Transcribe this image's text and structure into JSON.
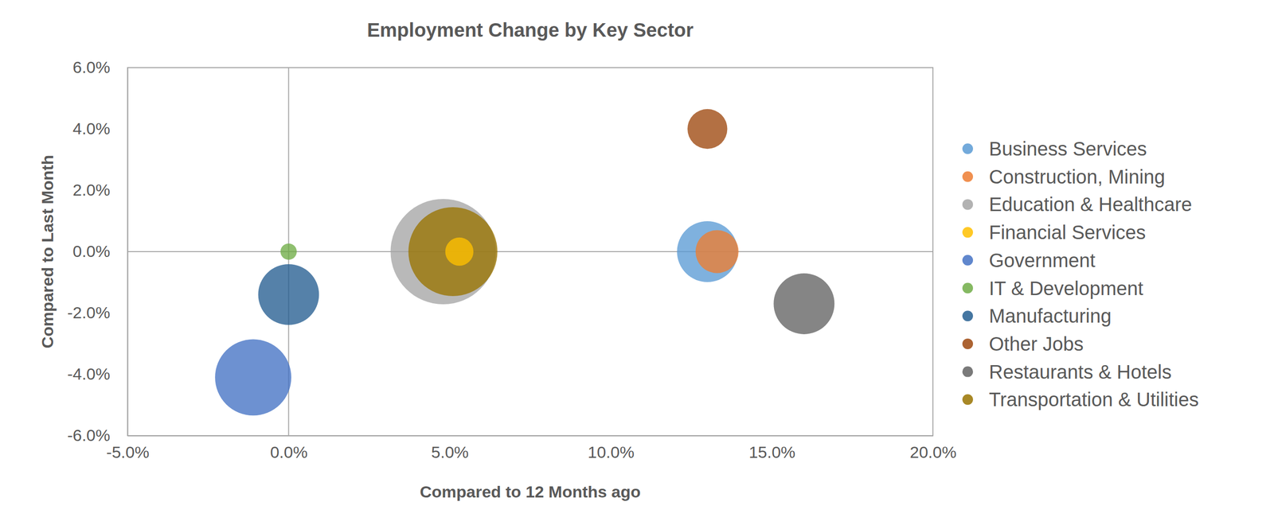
{
  "chart_data": {
    "type": "bubble",
    "title": "Employment Change by Key Sector",
    "x_label": "Compared to 12 Months ago",
    "y_label": "Compared to Last Month",
    "xlim": [
      -5,
      20
    ],
    "ylim": [
      -6,
      6
    ],
    "xticks": [
      {
        "value": -5,
        "label": "-5.0%"
      },
      {
        "value": 0,
        "label": "0.0%"
      },
      {
        "value": 5,
        "label": "5.0%"
      },
      {
        "value": 10,
        "label": "10.0%"
      },
      {
        "value": 15,
        "label": "15.0%"
      },
      {
        "value": 20,
        "label": "20.0%"
      }
    ],
    "yticks": [
      {
        "value": -6,
        "label": "-6.0%"
      },
      {
        "value": -4,
        "label": "-4.0%"
      },
      {
        "value": -2,
        "label": "-2.0%"
      },
      {
        "value": 0,
        "label": "0.0%"
      },
      {
        "value": 2,
        "label": "2.0%"
      },
      {
        "value": 4,
        "label": "4.0%"
      },
      {
        "value": 6,
        "label": "6.0%"
      }
    ],
    "grid": false,
    "legend": "right",
    "series": [
      {
        "name": "Business Services",
        "color": "#5b9bd5",
        "x": [
          13.0
        ],
        "values": [
          0.0
        ],
        "size": [
          14
        ]
      },
      {
        "name": "Construction, Mining",
        "color": "#ed7d31",
        "x": [
          13.3
        ],
        "values": [
          0.0
        ],
        "size": [
          7
        ]
      },
      {
        "name": "Education & Healthcare",
        "color": "#a5a5a5",
        "x": [
          4.8
        ],
        "values": [
          0.0
        ],
        "size": [
          42
        ]
      },
      {
        "name": "Financial Services",
        "color": "#ffc000",
        "x": [
          5.3
        ],
        "values": [
          0.0
        ],
        "size": [
          3
        ]
      },
      {
        "name": "Government",
        "color": "#4472c4",
        "x": [
          -1.1
        ],
        "values": [
          -4.1
        ],
        "size": [
          22
        ]
      },
      {
        "name": "IT & Development",
        "color": "#70ad47",
        "x": [
          0.0
        ],
        "values": [
          0.0
        ],
        "size": [
          1
        ]
      },
      {
        "name": "Manufacturing",
        "color": "#255e91",
        "x": [
          0.0
        ],
        "values": [
          -1.4
        ],
        "size": [
          14
        ]
      },
      {
        "name": "Other Jobs",
        "color": "#9e480e",
        "x": [
          13.0
        ],
        "values": [
          4.0
        ],
        "size": [
          6
        ]
      },
      {
        "name": "Restaurants & Hotels",
        "color": "#636363",
        "x": [
          16.0
        ],
        "values": [
          -1.7
        ],
        "size": [
          14
        ]
      },
      {
        "name": "Transportation & Utilities",
        "color": "#997300",
        "x": [
          5.1
        ],
        "values": [
          0.0
        ],
        "size": [
          30
        ]
      }
    ]
  }
}
